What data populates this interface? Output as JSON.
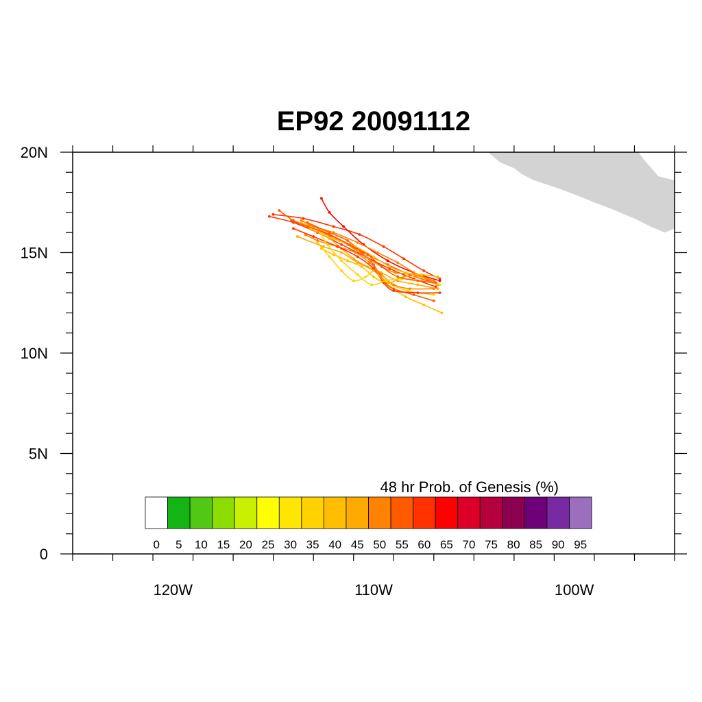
{
  "title": "EP92 20091112",
  "map": {
    "lon_range": [
      -125,
      -95
    ],
    "lat_range": [
      0,
      20
    ],
    "lat_ticks": [
      {
        "value": 20,
        "label": "20N"
      },
      {
        "value": 15,
        "label": "15N"
      },
      {
        "value": 10,
        "label": "10N"
      },
      {
        "value": 5,
        "label": "5N"
      },
      {
        "value": 0,
        "label": "0"
      }
    ],
    "lon_ticks": [
      {
        "value": -120,
        "label": "120W"
      },
      {
        "value": -110,
        "label": "110W"
      },
      {
        "value": -100,
        "label": "100W"
      }
    ],
    "land_color": "#d3d3d3",
    "land": [
      [
        -104.3,
        20
      ],
      [
        -103.7,
        19.5
      ],
      [
        -103.0,
        19.2
      ],
      [
        -102.6,
        18.9
      ],
      [
        -102.0,
        18.6
      ],
      [
        -100.8,
        18.2
      ],
      [
        -100.0,
        17.9
      ],
      [
        -99.0,
        17.5
      ],
      [
        -98.2,
        17.2
      ],
      [
        -97.5,
        16.9
      ],
      [
        -97.0,
        16.7
      ],
      [
        -96.2,
        16.3
      ],
      [
        -95.5,
        16.0
      ],
      [
        -95,
        16.2
      ],
      [
        -95,
        18.6
      ],
      [
        -95.8,
        18.8
      ],
      [
        -96.5,
        19.6
      ],
      [
        -96.8,
        20
      ]
    ]
  },
  "colorbar": {
    "title": "48 hr Prob. of Genesis (%)",
    "labels": [
      "0",
      "5",
      "10",
      "15",
      "20",
      "25",
      "30",
      "35",
      "40",
      "45",
      "50",
      "55",
      "60",
      "65",
      "70",
      "75",
      "80",
      "85",
      "90",
      "95"
    ],
    "colors": [
      "#ffffff",
      "#14b414",
      "#50c814",
      "#8cdc00",
      "#c8f000",
      "#ffff00",
      "#ffe600",
      "#ffd200",
      "#ffbe00",
      "#ffaa00",
      "#ff8200",
      "#ff5a00",
      "#ff3200",
      "#ff0000",
      "#dc0028",
      "#b4003c",
      "#8c0050",
      "#6e0078",
      "#7828a0",
      "#9b6ebe"
    ]
  },
  "tracks": [
    {
      "color": "#ff3200",
      "points": [
        [
          -106.7,
          13.7
        ],
        [
          -107.5,
          14.1
        ],
        [
          -108.5,
          14.7
        ],
        [
          -109.5,
          15.3
        ],
        [
          -110.7,
          15.9
        ],
        [
          -112.0,
          16.3
        ],
        [
          -113.5,
          16.7
        ],
        [
          -115.0,
          16.9
        ]
      ]
    },
    {
      "color": "#ff0000",
      "points": [
        [
          -106.7,
          13.6
        ],
        [
          -108.0,
          14.0
        ],
        [
          -109.3,
          14.6
        ],
        [
          -110.5,
          15.4
        ],
        [
          -111.5,
          16.3
        ],
        [
          -112.2,
          17.0
        ],
        [
          -112.6,
          17.7
        ]
      ]
    },
    {
      "color": "#ff5a00",
      "points": [
        [
          -107.0,
          13.5
        ],
        [
          -108.2,
          13.9
        ],
        [
          -109.3,
          14.4
        ],
        [
          -110.5,
          15.0
        ],
        [
          -111.7,
          15.6
        ],
        [
          -113.0,
          16.2
        ],
        [
          -114.0,
          16.6
        ],
        [
          -114.7,
          17.1
        ]
      ]
    },
    {
      "color": "#ff8200",
      "points": [
        [
          -106.8,
          13.4
        ],
        [
          -107.8,
          13.9
        ],
        [
          -108.8,
          14.5
        ],
        [
          -109.8,
          15.0
        ],
        [
          -110.8,
          15.5
        ],
        [
          -112.0,
          16.0
        ],
        [
          -113.0,
          16.3
        ],
        [
          -113.8,
          16.5
        ]
      ]
    },
    {
      "color": "#ff3200",
      "points": [
        [
          -106.9,
          13.3
        ],
        [
          -108.0,
          13.7
        ],
        [
          -109.2,
          14.2
        ],
        [
          -110.4,
          14.8
        ],
        [
          -111.6,
          15.4
        ],
        [
          -112.8,
          16.0
        ],
        [
          -114.0,
          16.5
        ],
        [
          -115.2,
          16.8
        ]
      ]
    },
    {
      "color": "#ffbe00",
      "points": [
        [
          -106.6,
          12.0
        ],
        [
          -107.5,
          12.4
        ],
        [
          -108.4,
          12.8
        ],
        [
          -109.2,
          13.3
        ],
        [
          -110.0,
          13.8
        ],
        [
          -110.6,
          14.3
        ],
        [
          -111.3,
          14.6
        ],
        [
          -112.0,
          14.9
        ],
        [
          -112.6,
          15.2
        ]
      ]
    },
    {
      "color": "#ffd200",
      "points": [
        [
          -107.0,
          12.9
        ],
        [
          -108.3,
          13.1
        ],
        [
          -109.3,
          13.5
        ],
        [
          -109.9,
          14.1
        ],
        [
          -110.4,
          13.8
        ],
        [
          -111.0,
          13.6
        ],
        [
          -111.6,
          14.1
        ],
        [
          -112.2,
          14.8
        ],
        [
          -112.8,
          15.5
        ]
      ]
    },
    {
      "color": "#ffaa00",
      "points": [
        [
          -106.8,
          13.2
        ],
        [
          -107.8,
          13.4
        ],
        [
          -108.8,
          13.6
        ],
        [
          -109.6,
          14.0
        ],
        [
          -110.3,
          14.3
        ],
        [
          -111.0,
          14.7
        ],
        [
          -111.6,
          15.2
        ],
        [
          -112.2,
          15.7
        ],
        [
          -113.2,
          16.2
        ]
      ]
    },
    {
      "color": "#ff5a00",
      "points": [
        [
          -107.0,
          12.6
        ],
        [
          -108.0,
          12.9
        ],
        [
          -109.0,
          13.2
        ],
        [
          -109.5,
          13.6
        ],
        [
          -110.0,
          14.4
        ],
        [
          -110.6,
          15.0
        ],
        [
          -111.3,
          15.6
        ],
        [
          -112.2,
          16.0
        ],
        [
          -113.3,
          16.5
        ]
      ]
    },
    {
      "color": "#ff8200",
      "points": [
        [
          -107.0,
          13.2
        ],
        [
          -108.2,
          13.2
        ],
        [
          -109.0,
          13.4
        ],
        [
          -109.6,
          13.9
        ],
        [
          -110.2,
          14.5
        ],
        [
          -110.9,
          15.0
        ],
        [
          -111.8,
          15.3
        ],
        [
          -112.8,
          15.6
        ],
        [
          -113.4,
          15.9
        ]
      ]
    },
    {
      "color": "#ff3200",
      "points": [
        [
          -106.7,
          13.0
        ],
        [
          -107.8,
          13.0
        ],
        [
          -109.0,
          13.1
        ],
        [
          -109.5,
          13.5
        ],
        [
          -110.0,
          14.2
        ],
        [
          -110.8,
          14.8
        ],
        [
          -111.8,
          15.3
        ],
        [
          -113.0,
          15.8
        ],
        [
          -114.0,
          16.2
        ]
      ]
    },
    {
      "color": "#ffaa00",
      "points": [
        [
          -106.9,
          13.5
        ],
        [
          -107.6,
          13.8
        ],
        [
          -108.5,
          13.8
        ],
        [
          -109.3,
          13.5
        ],
        [
          -110.0,
          14.1
        ],
        [
          -110.8,
          14.5
        ],
        [
          -111.6,
          15.0
        ],
        [
          -112.5,
          15.3
        ],
        [
          -113.8,
          15.8
        ]
      ]
    },
    {
      "color": "#ffd200",
      "points": [
        [
          -106.7,
          13.4
        ],
        [
          -107.6,
          13.6
        ],
        [
          -108.6,
          13.7
        ],
        [
          -109.4,
          13.6
        ],
        [
          -110.1,
          13.4
        ],
        [
          -110.8,
          13.9
        ],
        [
          -111.6,
          14.6
        ],
        [
          -112.3,
          15.4
        ],
        [
          -112.7,
          16.1
        ]
      ]
    },
    {
      "color": "#ff8200",
      "points": [
        [
          -107.0,
          13.6
        ],
        [
          -107.9,
          13.9
        ],
        [
          -108.9,
          14.0
        ],
        [
          -109.6,
          14.3
        ],
        [
          -110.4,
          14.8
        ],
        [
          -111.3,
          15.4
        ],
        [
          -112.2,
          15.9
        ],
        [
          -113.2,
          16.4
        ],
        [
          -113.6,
          16.6
        ]
      ]
    },
    {
      "color": "#ffbe00",
      "points": [
        [
          -106.8,
          13.8
        ],
        [
          -107.6,
          13.9
        ],
        [
          -108.4,
          14.0
        ],
        [
          -109.2,
          14.3
        ],
        [
          -110.0,
          14.8
        ],
        [
          -110.9,
          15.3
        ],
        [
          -112.0,
          15.7
        ],
        [
          -113.0,
          16.2
        ],
        [
          -113.6,
          16.5
        ]
      ]
    },
    {
      "color": "#ff5a00",
      "points": [
        [
          -106.9,
          13.5
        ],
        [
          -107.8,
          13.6
        ],
        [
          -108.8,
          13.8
        ],
        [
          -109.6,
          14.3
        ],
        [
          -110.3,
          14.9
        ],
        [
          -111.2,
          15.4
        ],
        [
          -112.2,
          15.9
        ],
        [
          -113.3,
          16.3
        ],
        [
          -114.1,
          16.6
        ]
      ]
    }
  ]
}
